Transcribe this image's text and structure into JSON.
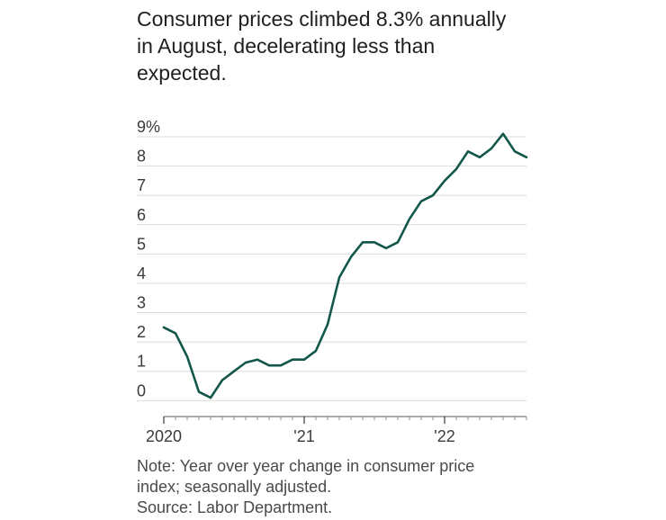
{
  "chart_data": {
    "type": "line",
    "title": "Consumer prices climbed 8.3% annually in August, decelerating less than expected.",
    "title_lines": [
      "Consumer prices climbed 8.3% annually",
      "in August, decelerating less than",
      "expected."
    ],
    "notes": [
      "Note: Year over year change in consumer price",
      "index; seasonally adjusted.",
      "Source: Labor Department."
    ],
    "y_tick_labels": [
      "0",
      "1",
      "2",
      "3",
      "4",
      "5",
      "6",
      "7",
      "8",
      "9%"
    ],
    "y_ticks": [
      0,
      1,
      2,
      3,
      4,
      5,
      6,
      7,
      8,
      9
    ],
    "ylim": [
      -0.45,
      9
    ],
    "x_tick_labels": [
      "2020",
      "'21",
      "'22"
    ],
    "x_ticks": [
      "2020-01",
      "2021-01",
      "2022-01"
    ],
    "xlim": [
      "2020-01",
      "2022-08"
    ],
    "grid": true,
    "line_color": "#12574a",
    "series": [
      {
        "x": [
          "2020-01",
          "2020-02",
          "2020-03",
          "2020-04",
          "2020-05",
          "2020-06",
          "2020-07",
          "2020-08",
          "2020-09",
          "2020-10",
          "2020-11",
          "2020-12",
          "2021-01",
          "2021-02",
          "2021-03",
          "2021-04",
          "2021-05",
          "2021-06",
          "2021-07",
          "2021-08",
          "2021-09",
          "2021-10",
          "2021-11",
          "2021-12",
          "2022-01",
          "2022-02",
          "2022-03",
          "2022-04",
          "2022-05",
          "2022-06",
          "2022-07",
          "2022-08"
        ],
        "values": [
          2.5,
          2.3,
          1.5,
          0.3,
          0.1,
          0.7,
          1.0,
          1.3,
          1.4,
          1.2,
          1.2,
          1.4,
          1.4,
          1.7,
          2.6,
          4.2,
          4.9,
          5.4,
          5.4,
          5.2,
          5.4,
          6.2,
          6.8,
          7.0,
          7.5,
          7.9,
          8.5,
          8.3,
          8.6,
          9.1,
          8.5,
          8.3
        ]
      }
    ]
  }
}
